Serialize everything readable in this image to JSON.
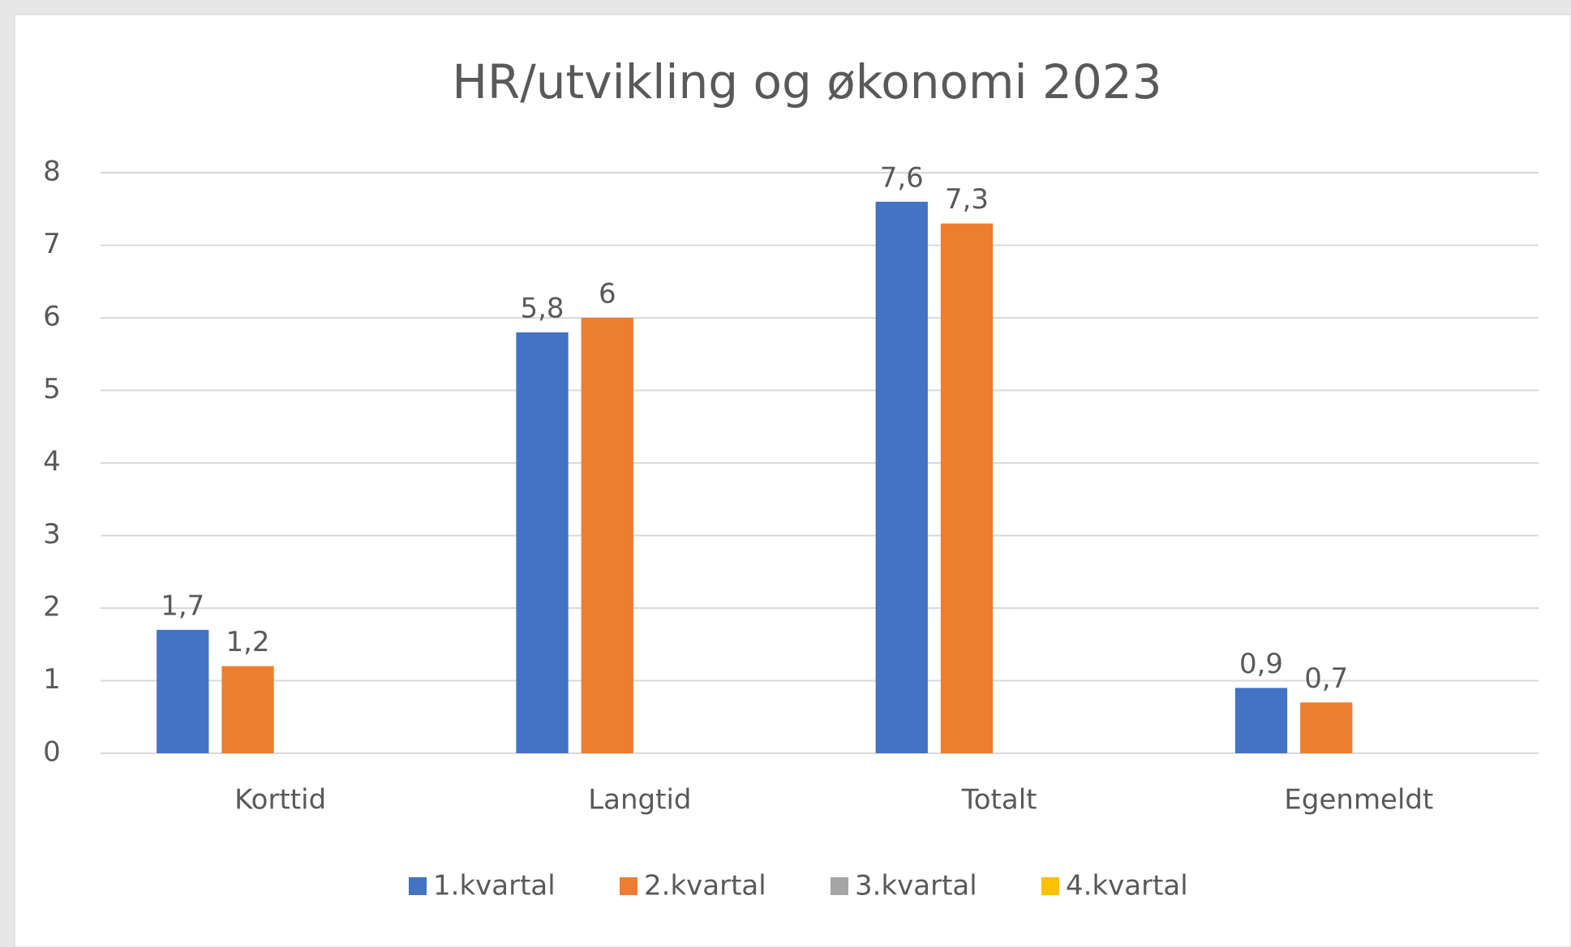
{
  "chart_data": {
    "type": "bar",
    "title": "HR/utvikling og økonomi 2023",
    "categories": [
      "Korttid",
      "Langtid",
      "Totalt",
      "Egenmeldt"
    ],
    "series": [
      {
        "name": "1.kvartal",
        "color": "#4472c4",
        "values": [
          1.7,
          5.8,
          7.6,
          0.9
        ],
        "value_labels": [
          "1,7",
          "5,8",
          "7,6",
          "0,9"
        ]
      },
      {
        "name": "2.kvartal",
        "color": "#ed7d31",
        "values": [
          1.2,
          6,
          7.3,
          0.7
        ],
        "value_labels": [
          "1,2",
          "6",
          "7,3",
          "0,7"
        ]
      },
      {
        "name": "3.kvartal",
        "color": "#a5a5a5",
        "values": [
          null,
          null,
          null,
          null
        ]
      },
      {
        "name": "4.kvartal",
        "color": "#ffc000",
        "values": [
          null,
          null,
          null,
          null
        ]
      }
    ],
    "ylim": [
      0,
      8
    ],
    "yticks": [
      0,
      1,
      2,
      3,
      4,
      5,
      6,
      7,
      8
    ],
    "grid": true,
    "legend": "bottom"
  }
}
